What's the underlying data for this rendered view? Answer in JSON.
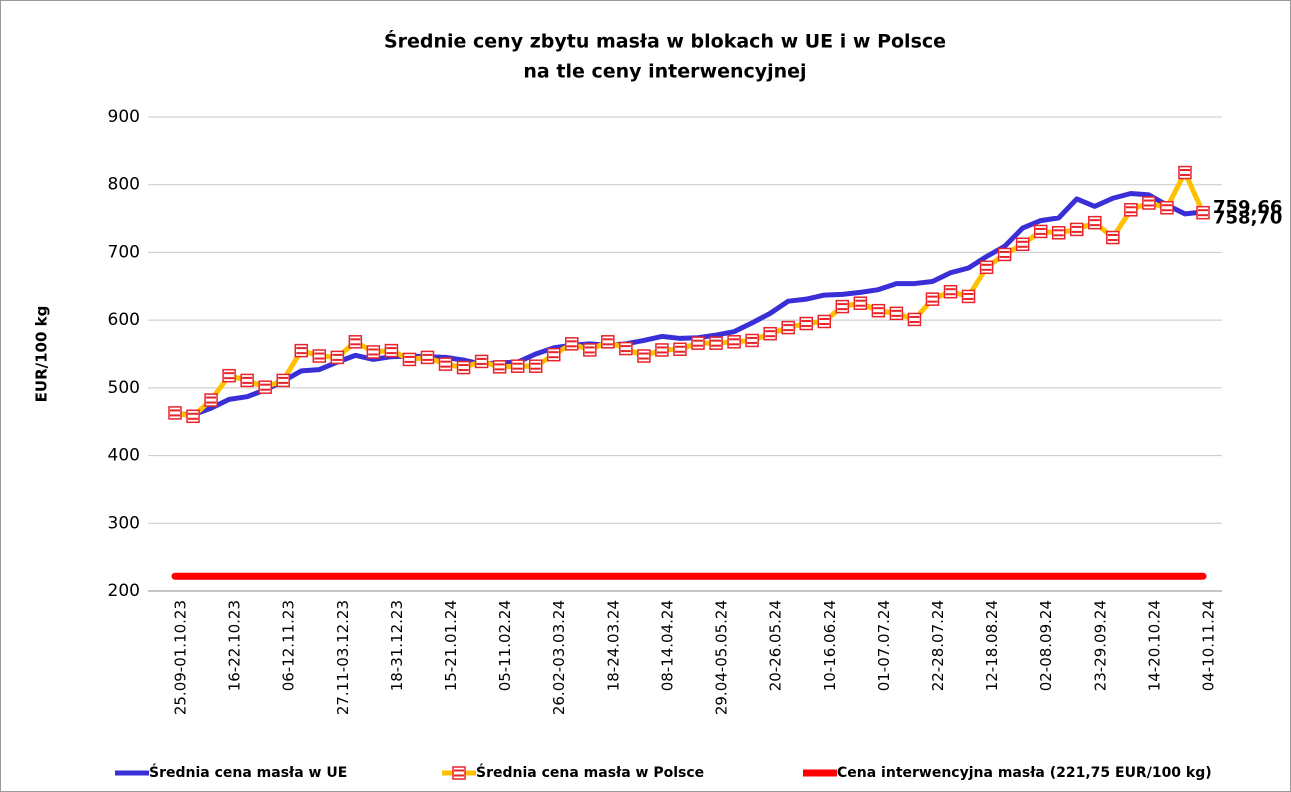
{
  "chart_data": {
    "type": "line",
    "title": [
      "Średnie ceny zbytu masła w blokach w UE i w Polsce",
      "na tle ceny interwencyjnej"
    ],
    "ylabel": "EUR/100 kg",
    "categories": [
      "25.09-01.10.23",
      null,
      null,
      "16-22.10.23",
      null,
      null,
      "06-12.11.23",
      null,
      null,
      "27.11-03.12.23",
      null,
      null,
      "18-31.12.23",
      null,
      null,
      "15-21.01.24",
      null,
      null,
      "05-11.02.24",
      null,
      null,
      "26.02-03.03.24",
      null,
      null,
      "18-24.03.24",
      null,
      null,
      "08-14.04.24",
      null,
      null,
      "29.04-05.05.24",
      null,
      null,
      "20-26.05.24",
      null,
      null,
      "10-16.06.24",
      null,
      null,
      "01-07.07.24",
      null,
      null,
      "22-28.07.24",
      null,
      null,
      "12-18.08.24",
      null,
      null,
      "02-08.09.24",
      null,
      null,
      "23-29.09.24",
      null,
      null,
      "14-20.10.24",
      null,
      null,
      "04-10.11.24"
    ],
    "series": [
      {
        "name": "Średnia cena masła w UE",
        "color": "#3a2fd6",
        "marker": false,
        "values": [
          462,
          460,
          470,
          483,
          487,
          497,
          510,
          525,
          527,
          538,
          548,
          542,
          546,
          547,
          546,
          545,
          541,
          535,
          537,
          538,
          550,
          559,
          563,
          565,
          563,
          565,
          570,
          576,
          573,
          574,
          578,
          583,
          596,
          610,
          628,
          631,
          637,
          638,
          641,
          645,
          654,
          654,
          657,
          670,
          677,
          694,
          709,
          736,
          747,
          751,
          779,
          768,
          780,
          787,
          785,
          770,
          757,
          759.66
        ],
        "value_labels": [
          null,
          null,
          null,
          null,
          null,
          null,
          null,
          null,
          null,
          null,
          null,
          null,
          null,
          null,
          null,
          null,
          null,
          null,
          null,
          null,
          null,
          null,
          null,
          null,
          null,
          null,
          null,
          null,
          null,
          null,
          null,
          null,
          null,
          null,
          null,
          null,
          null,
          null,
          null,
          null,
          null,
          null,
          null,
          null,
          null,
          null,
          null,
          null,
          null,
          null,
          null,
          null,
          null,
          null,
          null,
          null,
          null,
          "759,66"
        ]
      },
      {
        "name": "Średnia cena masła w Polsce",
        "color": "#ffc000",
        "marker": true,
        "marker_color": "#e8232a",
        "values": [
          463,
          458,
          482,
          518,
          511,
          501,
          511,
          555,
          547,
          545,
          568,
          553,
          555,
          542,
          545,
          535,
          530,
          539,
          531,
          532,
          532,
          549,
          565,
          556,
          568,
          558,
          547,
          556,
          557,
          566,
          566,
          568,
          570,
          580,
          589,
          595,
          598,
          620,
          625,
          614,
          610,
          601,
          631,
          642,
          635,
          678,
          697,
          712,
          731,
          729,
          734,
          744,
          722,
          763,
          773,
          766,
          818,
          758.7
        ],
        "value_labels": [
          null,
          null,
          null,
          null,
          null,
          null,
          null,
          null,
          null,
          null,
          null,
          null,
          null,
          null,
          null,
          null,
          null,
          null,
          null,
          null,
          null,
          null,
          null,
          null,
          null,
          null,
          null,
          null,
          null,
          null,
          null,
          null,
          null,
          null,
          null,
          null,
          null,
          null,
          null,
          null,
          null,
          null,
          null,
          null,
          null,
          null,
          null,
          null,
          null,
          null,
          null,
          null,
          null,
          null,
          null,
          null,
          null,
          "758,70"
        ]
      },
      {
        "name": "Cena interwencyjna masła (221,75 EUR/100 kg)",
        "color": "#ff0000",
        "marker": false,
        "width": 7,
        "values": [
          221.75,
          221.75,
          221.75,
          221.75,
          221.75,
          221.75,
          221.75,
          221.75,
          221.75,
          221.75,
          221.75,
          221.75,
          221.75,
          221.75,
          221.75,
          221.75,
          221.75,
          221.75,
          221.75,
          221.75,
          221.75,
          221.75,
          221.75,
          221.75,
          221.75,
          221.75,
          221.75,
          221.75,
          221.75,
          221.75,
          221.75,
          221.75,
          221.75,
          221.75,
          221.75,
          221.75,
          221.75,
          221.75,
          221.75,
          221.75,
          221.75,
          221.75,
          221.75,
          221.75,
          221.75,
          221.75,
          221.75,
          221.75,
          221.75,
          221.75,
          221.75,
          221.75,
          221.75,
          221.75,
          221.75,
          221.75,
          221.75,
          221.75
        ]
      }
    ],
    "ylim": [
      200,
      900
    ],
    "yticks": [
      200,
      300,
      400,
      500,
      600,
      700,
      800,
      900
    ],
    "grid": true,
    "legend": "bottom"
  }
}
